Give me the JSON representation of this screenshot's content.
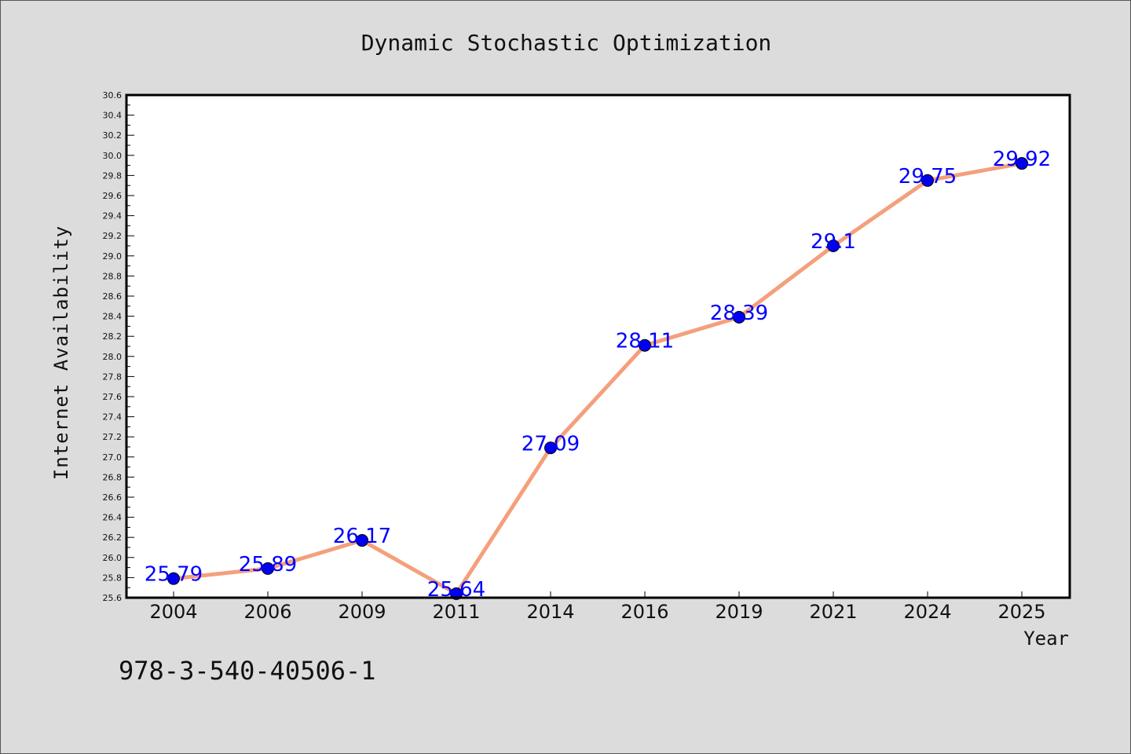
{
  "chart_data": {
    "type": "line",
    "title": "Dynamic Stochastic Optimization",
    "xlabel": "Year",
    "ylabel": "Internet Availability",
    "categories": [
      "2004",
      "2006",
      "2009",
      "2011",
      "2014",
      "2016",
      "2019",
      "2021",
      "2024",
      "2025"
    ],
    "series": [
      {
        "values": [
          25.79,
          25.89,
          26.17,
          25.64,
          27.09,
          28.11,
          28.39,
          29.1,
          29.75,
          29.92
        ],
        "labels": [
          "25.79",
          "25.89",
          "26.17",
          "25.64",
          "27.09",
          "28.11",
          "28.39",
          "29.1",
          "29.75",
          "29.92"
        ]
      }
    ],
    "ylim": [
      25.6,
      30.6
    ],
    "yticks": [
      "25.6",
      "25.8",
      "26.0",
      "26.2",
      "26.4",
      "26.6",
      "26.8",
      "27.0",
      "27.2",
      "27.4",
      "27.6",
      "27.8",
      "28.0",
      "28.2",
      "28.4",
      "28.6",
      "28.8",
      "29.0",
      "29.2",
      "29.4",
      "29.6",
      "29.8",
      "30.0",
      "30.2",
      "30.4",
      "30.6"
    ],
    "grid": false,
    "legend": "none",
    "colors": {
      "line": "#f4a07c",
      "marker": "#0000ee",
      "labels": "#0000ff",
      "background": "#dcdcdc",
      "plot_background": "#ffffff"
    }
  },
  "annotation": "978-3-540-40506-1"
}
